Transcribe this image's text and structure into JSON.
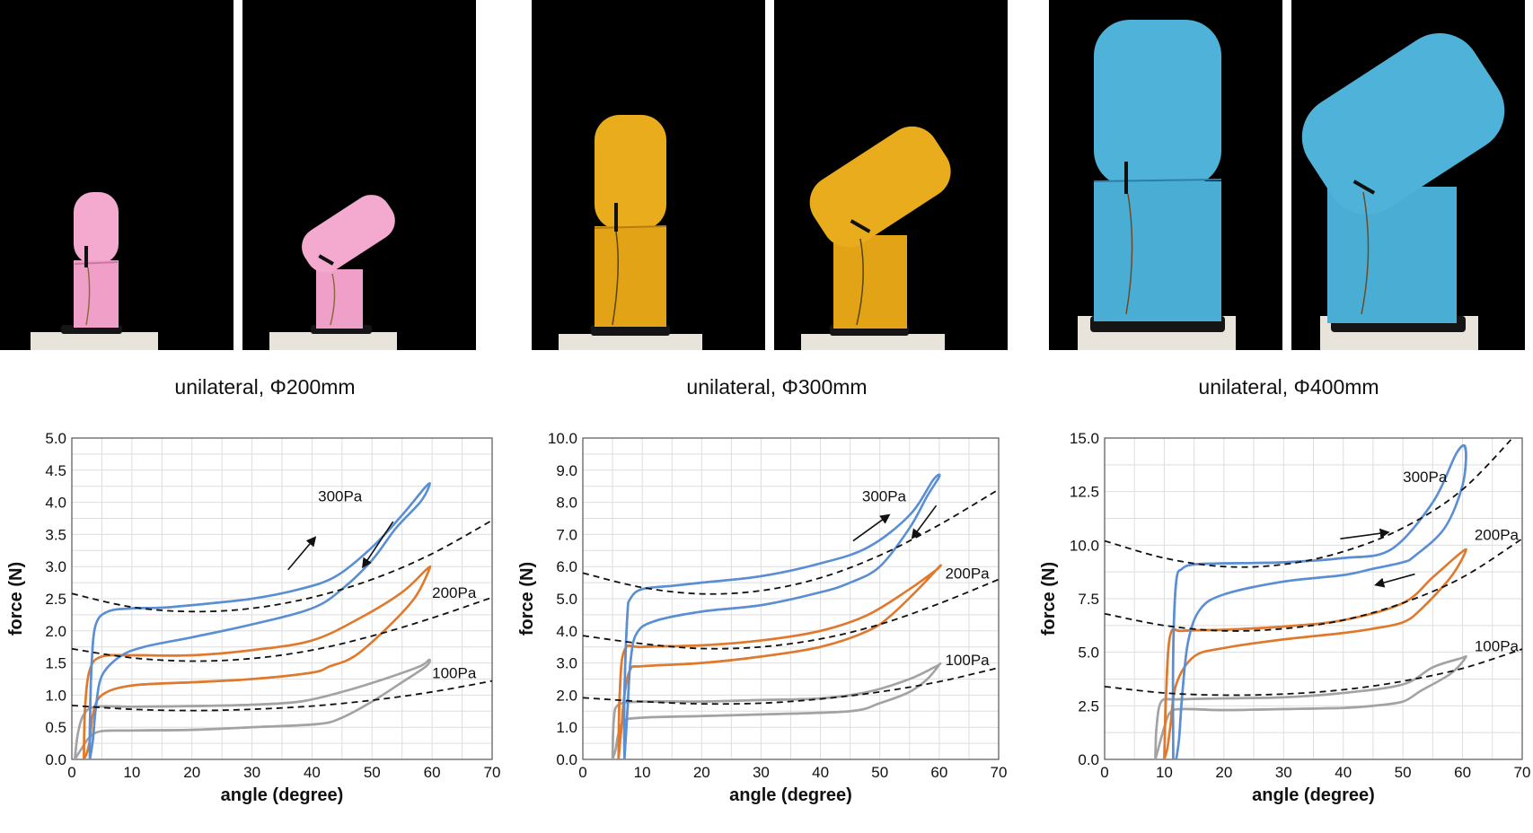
{
  "captions": [
    "unilateral, Φ200mm",
    "unilateral, Φ300mm",
    "unilateral, Φ400mm"
  ],
  "colors": {
    "p300": "#5b8fd4",
    "p200": "#e07a2c",
    "p100": "#a3a3a3",
    "pink": "#f4a9cf",
    "yellow": "#e8ac1c",
    "blue": "#4fb3d9"
  },
  "chart_data": [
    {
      "type": "line",
      "xlabel": "angle (degree)",
      "ylabel": "force (N)",
      "xlim": [
        0,
        70
      ],
      "ylim": [
        0,
        5
      ],
      "xticks": [
        0,
        10,
        20,
        30,
        40,
        50,
        60,
        70
      ],
      "yticks": [
        0,
        0.5,
        1,
        1.5,
        2,
        2.5,
        3,
        3.5,
        4,
        4.5,
        5
      ],
      "ytick_decimals": 1,
      "grid": true,
      "series": [
        {
          "name": "300Pa",
          "color": "#5b8fd4",
          "x": [
            3,
            3,
            3.3,
            4,
            6,
            10,
            15,
            20,
            30,
            38,
            44,
            50,
            55,
            59,
            59.5,
            58,
            54,
            50,
            45,
            40,
            30,
            20,
            12,
            8,
            5,
            4,
            3.5,
            3
          ],
          "y": [
            0,
            0.5,
            1.5,
            2.1,
            2.3,
            2.35,
            2.36,
            2.4,
            2.5,
            2.65,
            2.85,
            3.3,
            3.8,
            4.25,
            4.25,
            4.0,
            3.6,
            3.1,
            2.65,
            2.35,
            2.1,
            1.9,
            1.75,
            1.6,
            1.3,
            0.8,
            0.3,
            0
          ]
        },
        {
          "name": "200Pa",
          "color": "#e07a2c",
          "x": [
            2,
            2.2,
            3,
            5,
            10,
            20,
            30,
            40,
            48,
            55,
            59,
            59.5,
            57,
            52,
            47,
            43,
            40,
            30,
            20,
            10,
            5,
            3.5,
            3,
            2.5,
            2
          ],
          "y": [
            0,
            0.8,
            1.4,
            1.6,
            1.62,
            1.62,
            1.7,
            1.85,
            2.2,
            2.6,
            2.95,
            2.95,
            2.5,
            2.0,
            1.6,
            1.45,
            1.35,
            1.25,
            1.2,
            1.15,
            1.0,
            0.7,
            0.3,
            0.1,
            0
          ]
        },
        {
          "name": "100Pa",
          "color": "#a3a3a3",
          "x": [
            0.5,
            1,
            2,
            4,
            10,
            20,
            30,
            38,
            45,
            52,
            58,
            59.5,
            59,
            55,
            50,
            45,
            41,
            30,
            20,
            10,
            5,
            3,
            1.5,
            0.5
          ],
          "y": [
            0,
            0.4,
            0.7,
            0.82,
            0.82,
            0.83,
            0.85,
            0.9,
            1.05,
            1.25,
            1.45,
            1.55,
            1.45,
            1.2,
            0.9,
            0.65,
            0.55,
            0.5,
            0.46,
            0.45,
            0.44,
            0.35,
            0.15,
            0
          ]
        }
      ],
      "fit_curves": [
        {
          "x": [
            0,
            10,
            20,
            30,
            40,
            50,
            60,
            70
          ],
          "y": [
            2.58,
            2.37,
            2.3,
            2.35,
            2.52,
            2.8,
            3.2,
            3.72
          ]
        },
        {
          "x": [
            0,
            10,
            20,
            30,
            40,
            50,
            60,
            70
          ],
          "y": [
            1.72,
            1.58,
            1.53,
            1.57,
            1.7,
            1.92,
            2.2,
            2.52
          ]
        },
        {
          "x": [
            0,
            10,
            20,
            30,
            40,
            50,
            60,
            70
          ],
          "y": [
            0.84,
            0.78,
            0.76,
            0.78,
            0.83,
            0.92,
            1.05,
            1.22
          ]
        }
      ],
      "labels": [
        {
          "text": "300Pa",
          "x": 41,
          "y": 4.1
        },
        {
          "text": "200Pa",
          "x": 60,
          "y": 2.6
        },
        {
          "text": "100Pa",
          "x": 60,
          "y": 1.35
        }
      ],
      "arrows": [
        {
          "x1": 36,
          "y1": 2.95,
          "x2": 40.5,
          "y2": 3.45
        },
        {
          "x1": 53.5,
          "y1": 3.7,
          "x2": 48.5,
          "y2": 3.0
        }
      ]
    },
    {
      "type": "line",
      "xlabel": "angle (degree)",
      "ylabel": "force (N)",
      "xlim": [
        0,
        70
      ],
      "ylim": [
        0,
        10
      ],
      "xticks": [
        0,
        10,
        20,
        30,
        40,
        50,
        60,
        70
      ],
      "yticks": [
        0,
        1,
        2,
        3,
        4,
        5,
        6,
        7,
        8,
        9,
        10
      ],
      "ytick_decimals": 1,
      "grid": true,
      "series": [
        {
          "name": "300Pa",
          "color": "#5b8fd4",
          "x": [
            7,
            7,
            7.5,
            8,
            10,
            15,
            20,
            30,
            40,
            48,
            55,
            59,
            60,
            58,
            55,
            50,
            45,
            40,
            30,
            20,
            12,
            9,
            8,
            7.5,
            7
          ],
          "y": [
            0,
            2,
            4.5,
            5.0,
            5.3,
            5.4,
            5.5,
            5.7,
            6.1,
            6.6,
            7.6,
            8.7,
            8.8,
            8.2,
            7.2,
            6.0,
            5.5,
            5.2,
            4.8,
            4.6,
            4.3,
            3.9,
            3.0,
            1.5,
            0
          ]
        },
        {
          "name": "200Pa",
          "color": "#e07a2c",
          "x": [
            6,
            6.2,
            7,
            10,
            20,
            30,
            40,
            48,
            55,
            59.5,
            60,
            57,
            52,
            48,
            40,
            30,
            20,
            10,
            8,
            7,
            6.5,
            6
          ],
          "y": [
            0,
            2,
            3.4,
            3.5,
            3.55,
            3.7,
            4.0,
            4.5,
            5.3,
            5.9,
            6.0,
            5.4,
            4.5,
            4.0,
            3.5,
            3.2,
            3.0,
            2.9,
            2.8,
            2.0,
            1.0,
            0
          ]
        },
        {
          "name": "100Pa",
          "color": "#a3a3a3",
          "x": [
            5,
            5.2,
            6,
            10,
            20,
            30,
            40,
            48,
            55,
            59.5,
            60,
            58,
            55,
            50,
            45,
            30,
            20,
            10,
            7,
            6,
            5.5,
            5
          ],
          "y": [
            0,
            1.2,
            1.7,
            1.8,
            1.8,
            1.85,
            1.9,
            2.1,
            2.5,
            2.9,
            2.95,
            2.5,
            2.1,
            1.75,
            1.5,
            1.4,
            1.35,
            1.3,
            1.2,
            0.8,
            0.3,
            0
          ]
        }
      ],
      "fit_curves": [
        {
          "x": [
            0,
            10,
            20,
            30,
            40,
            50,
            60,
            70
          ],
          "y": [
            5.8,
            5.35,
            5.15,
            5.25,
            5.65,
            6.35,
            7.3,
            8.4
          ]
        },
        {
          "x": [
            0,
            10,
            20,
            30,
            40,
            50,
            60,
            70
          ],
          "y": [
            3.85,
            3.6,
            3.45,
            3.5,
            3.75,
            4.2,
            4.85,
            5.6
          ]
        },
        {
          "x": [
            0,
            10,
            20,
            30,
            40,
            50,
            60,
            70
          ],
          "y": [
            1.92,
            1.8,
            1.73,
            1.75,
            1.88,
            2.1,
            2.42,
            2.85
          ]
        }
      ],
      "labels": [
        {
          "text": "300Pa",
          "x": 47,
          "y": 8.2
        },
        {
          "text": "200Pa",
          "x": 61,
          "y": 5.8
        },
        {
          "text": "100Pa",
          "x": 61,
          "y": 3.1
        }
      ],
      "arrows": [
        {
          "x1": 45.5,
          "y1": 6.8,
          "x2": 51.5,
          "y2": 7.6
        },
        {
          "x1": 59.5,
          "y1": 7.9,
          "x2": 55.5,
          "y2": 6.9
        }
      ]
    },
    {
      "type": "line",
      "xlabel": "angle (degree)",
      "ylabel": "force (N)",
      "xlim": [
        0,
        70
      ],
      "ylim": [
        0,
        15
      ],
      "xticks": [
        0,
        10,
        20,
        30,
        40,
        50,
        60,
        70
      ],
      "yticks": [
        0,
        2.5,
        5,
        7.5,
        10,
        12.5,
        15
      ],
      "ytick_decimals": 1,
      "grid": true,
      "series": [
        {
          "name": "300Pa",
          "color": "#5b8fd4",
          "x": [
            11.5,
            11.5,
            12,
            13,
            15,
            20,
            30,
            40,
            48,
            55,
            59,
            60.5,
            60,
            57,
            52,
            50,
            45,
            40,
            30,
            20,
            16,
            14,
            13,
            12.5,
            12
          ],
          "y": [
            0,
            5,
            8.3,
            8.9,
            9.1,
            9.15,
            9.2,
            9.4,
            9.8,
            12.0,
            14.3,
            14.5,
            12.8,
            10.8,
            9.5,
            9.2,
            8.9,
            8.6,
            8.3,
            7.7,
            7.0,
            5.5,
            3.0,
            1.0,
            0
          ]
        },
        {
          "name": "200Pa",
          "color": "#e07a2c",
          "x": [
            10,
            10.3,
            11,
            13,
            20,
            30,
            40,
            50,
            55,
            59.5,
            60.5,
            58,
            53,
            50,
            45,
            40,
            30,
            20,
            15,
            12,
            11,
            10.5,
            10
          ],
          "y": [
            0,
            3,
            5.8,
            6.0,
            6.05,
            6.2,
            6.5,
            7.3,
            8.5,
            9.6,
            9.7,
            8.5,
            7.0,
            6.4,
            6.1,
            5.9,
            5.6,
            5.2,
            4.8,
            3.5,
            1.5,
            0.5,
            0
          ]
        },
        {
          "name": "100Pa",
          "color": "#a3a3a3",
          "x": [
            8.5,
            8.7,
            9.5,
            12,
            20,
            30,
            40,
            50,
            55,
            59.5,
            60.5,
            58,
            53,
            50,
            45,
            40,
            30,
            20,
            13,
            11,
            10,
            9,
            8.5
          ],
          "y": [
            0,
            1.5,
            2.7,
            2.8,
            2.85,
            2.9,
            3.1,
            3.5,
            4.3,
            4.7,
            4.75,
            4.0,
            3.2,
            2.7,
            2.5,
            2.4,
            2.35,
            2.3,
            2.35,
            2.2,
            1.5,
            0.5,
            0
          ]
        }
      ],
      "fit_curves": [
        {
          "x": [
            0,
            10,
            20,
            30,
            40,
            50,
            60,
            70
          ],
          "y": [
            10.2,
            9.4,
            9.0,
            9.1,
            9.7,
            10.8,
            12.6,
            15.5
          ]
        },
        {
          "x": [
            0,
            10,
            20,
            30,
            40,
            50,
            60,
            70
          ],
          "y": [
            6.8,
            6.25,
            6.0,
            6.1,
            6.5,
            7.3,
            8.5,
            10.3
          ]
        },
        {
          "x": [
            0,
            10,
            20,
            30,
            40,
            50,
            60,
            70
          ],
          "y": [
            3.4,
            3.1,
            3.0,
            3.05,
            3.25,
            3.65,
            4.25,
            5.15
          ]
        }
      ],
      "labels": [
        {
          "text": "300Pa",
          "x": 50,
          "y": 13.2
        },
        {
          "text": "200Pa",
          "x": 62,
          "y": 10.5
        },
        {
          "text": "100Pa",
          "x": 62,
          "y": 5.3
        }
      ],
      "arrows": [
        {
          "x1": 39.5,
          "y1": 10.3,
          "x2": 47.5,
          "y2": 10.6
        },
        {
          "x1": 52,
          "y1": 8.65,
          "x2": 45.5,
          "y2": 8.15
        }
      ]
    }
  ]
}
